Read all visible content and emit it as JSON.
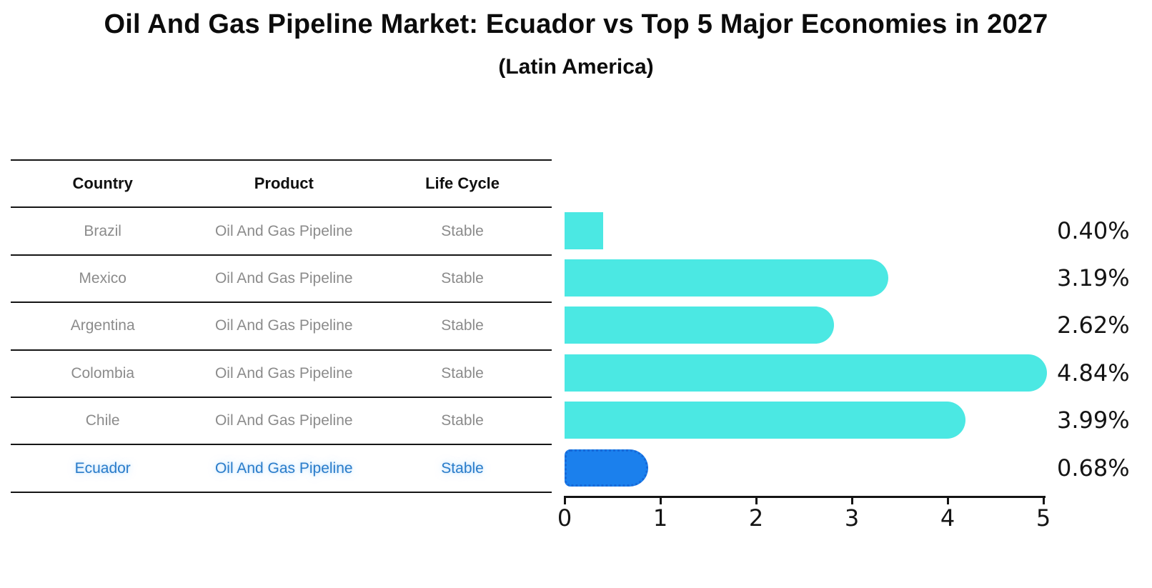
{
  "title": "Oil And Gas Pipeline Market: Ecuador vs Top 5 Major Economies in 2027",
  "subtitle": "(Latin America)",
  "table": {
    "headers": [
      "Country",
      "Product",
      "Life Cycle"
    ],
    "rows": [
      {
        "country": "Brazil",
        "product": "Oil And Gas Pipeline",
        "life_cycle": "Stable",
        "highlighted": false
      },
      {
        "country": "Mexico",
        "product": "Oil And Gas Pipeline",
        "life_cycle": "Stable",
        "highlighted": false
      },
      {
        "country": "Argentina",
        "product": "Oil And Gas Pipeline",
        "life_cycle": "Stable",
        "highlighted": false
      },
      {
        "country": "Colombia",
        "product": "Oil And Gas Pipeline",
        "life_cycle": "Stable",
        "highlighted": false
      },
      {
        "country": "Chile",
        "product": "Oil And Gas Pipeline",
        "life_cycle": "Stable",
        "highlighted": false
      },
      {
        "country": "Ecuador",
        "product": "Oil And Gas Pipeline",
        "life_cycle": "Stable",
        "highlighted": true
      }
    ]
  },
  "chart_data": {
    "type": "bar",
    "orientation": "horizontal",
    "categories": [
      "Brazil",
      "Mexico",
      "Argentina",
      "Colombia",
      "Chile",
      "Ecuador"
    ],
    "values": [
      0.4,
      3.19,
      2.62,
      4.84,
      3.99,
      0.68
    ],
    "value_labels": [
      "0.40%",
      "3.19%",
      "2.62%",
      "4.84%",
      "3.99%",
      "0.68%"
    ],
    "xlim": [
      0,
      5
    ],
    "x_ticks": [
      0,
      1,
      2,
      3,
      4,
      5
    ],
    "x_tick_labels": [
      "0",
      "1",
      "2",
      "3",
      "4",
      "5"
    ],
    "grid": false,
    "legend": "none",
    "highlight_index": 5,
    "rounded_end": [
      false,
      true,
      true,
      true,
      true,
      true
    ],
    "colors": {
      "bar": "#4BE8E3",
      "highlight_bar": "#1B80ED",
      "highlight_border": "#1668D8",
      "axis": "#141414",
      "value_label": "#141414",
      "table_text": "#8B8B8B",
      "highlight_text": "#2A7CC9"
    }
  }
}
